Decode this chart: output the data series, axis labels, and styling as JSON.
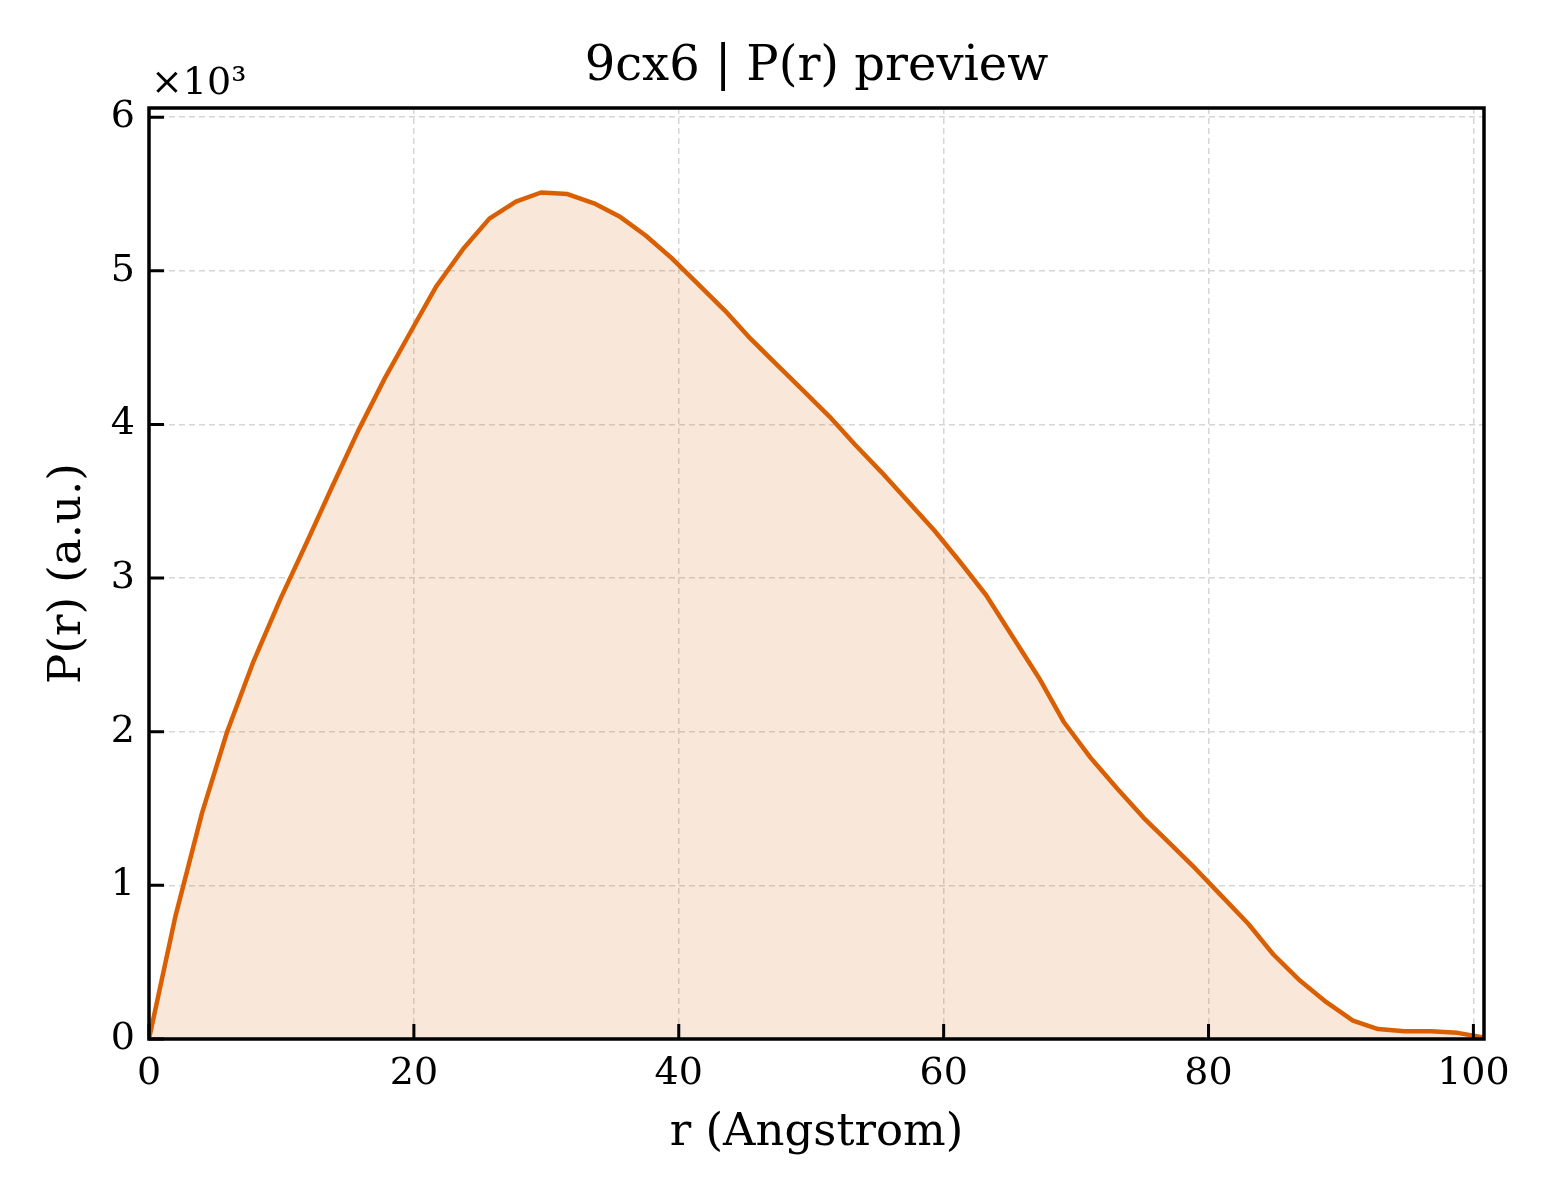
{
  "chart_data": {
    "type": "area",
    "title": "9cx6 | P(r) preview",
    "xlabel": "r (Angstrom)",
    "ylabel": "P(r) (a.u.)",
    "annotations": [
      "×10³"
    ],
    "x": [
      0,
      2.0,
      4.0,
      5.9,
      7.9,
      9.9,
      11.9,
      13.8,
      15.8,
      17.8,
      19.8,
      21.7,
      23.7,
      25.7,
      27.7,
      29.6,
      31.6,
      33.6,
      35.6,
      37.5,
      39.5,
      41.5,
      43.5,
      45.4,
      47.4,
      49.4,
      51.4,
      53.3,
      55.3,
      57.3,
      59.3,
      61.2,
      63.2,
      65.2,
      67.2,
      69.1,
      71.1,
      73.1,
      75.1,
      77.0,
      79.0,
      81.0,
      83.0,
      84.9,
      86.9,
      88.9,
      90.9,
      92.8,
      94.8,
      96.8,
      98.8,
      100.8
    ],
    "series": [
      {
        "color": "#d95f02",
        "values": [
          0,
          0.8,
          1.47,
          2.0,
          2.46,
          2.86,
          3.23,
          3.59,
          3.96,
          4.3,
          4.61,
          4.9,
          5.14,
          5.34,
          5.45,
          5.51,
          5.5,
          5.44,
          5.35,
          5.23,
          5.08,
          4.91,
          4.74,
          4.56,
          4.39,
          4.22,
          4.05,
          3.87,
          3.69,
          3.5,
          3.31,
          3.11,
          2.89,
          2.62,
          2.35,
          2.06,
          1.83,
          1.63,
          1.44,
          1.28,
          1.11,
          0.93,
          0.75,
          0.55,
          0.38,
          0.24,
          0.12,
          0.065,
          0.05,
          0.05,
          0.04,
          0.01
        ]
      }
    ],
    "xlim": [
      0,
      100.8
    ],
    "xticks": [
      0,
      20,
      40,
      60,
      80,
      100
    ],
    "ylim": [
      0,
      6.06
    ],
    "yticks": [
      0,
      1,
      2,
      3,
      4,
      5,
      6
    ],
    "grid": true
  }
}
